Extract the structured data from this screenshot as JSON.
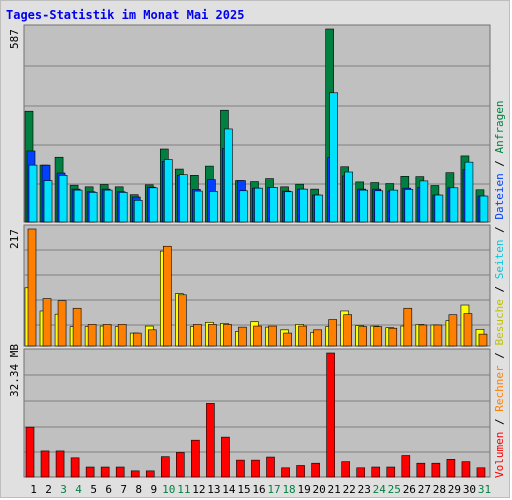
{
  "page": {
    "title": "Tages-Statistik im Monat Mai 2025"
  },
  "colors": {
    "plot_bg": "#c0c0c0",
    "grid": "#808080",
    "anfragen": "#008040",
    "dateien": "#0040ff",
    "seiten": "#00e0ff",
    "besuche": "#ffff00",
    "rechner": "#ff8000",
    "volumen": "#ff0000",
    "weekend_label": "#008040",
    "weekday_label": "#000000"
  },
  "chart_data": [
    {
      "type": "bar",
      "title": "Tages-Statistik im Monat Mai 2025",
      "max_label": "587",
      "ylim": [
        0,
        587
      ],
      "categories": [
        "1",
        "2",
        "3",
        "4",
        "5",
        "6",
        "7",
        "8",
        "9",
        "10",
        "11",
        "12",
        "13",
        "14",
        "15",
        "16",
        "17",
        "18",
        "19",
        "20",
        "21",
        "22",
        "23",
        "24",
        "25",
        "26",
        "27",
        "28",
        "29",
        "30",
        "31"
      ],
      "weekend_days": [
        "3",
        "4",
        "10",
        "11",
        "17",
        "18",
        "24",
        "25",
        "31"
      ],
      "series": [
        {
          "name": "Anfragen",
          "values": [
            337,
            173,
            197,
            112,
            107,
            114,
            107,
            83,
            113,
            222,
            161,
            142,
            170,
            340,
            126,
            123,
            132,
            107,
            115,
            100,
            587,
            168,
            122,
            120,
            117,
            139,
            138,
            111,
            150,
            201,
            98
          ]
        },
        {
          "name": "Dateien",
          "values": [
            216,
            173,
            149,
            100,
            92,
            100,
            92,
            76,
            106,
            184,
            142,
            99,
            129,
            224,
            126,
            103,
            105,
            94,
            100,
            82,
            196,
            140,
            100,
            100,
            94,
            103,
            105,
            82,
            104,
            159,
            79
          ]
        },
        {
          "name": "Seiten",
          "values": [
            173,
            126,
            142,
            97,
            90,
            97,
            90,
            66,
            104,
            190,
            144,
            94,
            93,
            283,
            95,
            103,
            105,
            92,
            100,
            82,
            393,
            152,
            97,
            95,
            97,
            99,
            125,
            82,
            104,
            182,
            79
          ]
        }
      ]
    },
    {
      "type": "bar",
      "max_label": "217",
      "ylim": [
        0,
        217
      ],
      "series": [
        {
          "name": "Besuche",
          "values": [
            108,
            65,
            59,
            36,
            36,
            37,
            36,
            24,
            37,
            176,
            97,
            36,
            44,
            42,
            27,
            45,
            35,
            30,
            40,
            25,
            36,
            65,
            38,
            37,
            34,
            37,
            40,
            39,
            47,
            76,
            31
          ]
        },
        {
          "name": "Rechner",
          "values": [
            217,
            88,
            84,
            70,
            40,
            40,
            40,
            24,
            30,
            185,
            95,
            40,
            40,
            40,
            35,
            37,
            37,
            24,
            37,
            30,
            49,
            58,
            36,
            36,
            33,
            70,
            39,
            39,
            58,
            60,
            22
          ]
        }
      ]
    },
    {
      "type": "bar",
      "max_label": "32.34 MB",
      "ylim": [
        0,
        32.34
      ],
      "series": [
        {
          "name": "Volumen",
          "values": [
            13.0,
            6.8,
            6.8,
            5.0,
            2.6,
            2.6,
            2.6,
            1.6,
            1.6,
            5.3,
            6.4,
            9.6,
            19.2,
            10.4,
            4.4,
            4.4,
            5.2,
            2.4,
            3.0,
            3.6,
            32.34,
            4.0,
            2.4,
            2.6,
            2.6,
            5.6,
            3.6,
            3.6,
            4.6,
            4.0,
            2.4
          ]
        }
      ]
    }
  ],
  "legend_right": [
    {
      "label": "Volumen",
      "color": "#ff0000"
    },
    {
      "label": "Rechner",
      "color": "#ff8000"
    },
    {
      "label": "Besuche",
      "color": "#c0c000"
    },
    {
      "label": "Seiten",
      "color": "#00c8e0"
    },
    {
      "label": "Dateien",
      "color": "#0040ff"
    },
    {
      "label": "Anfragen",
      "color": "#008040"
    }
  ],
  "legend_separator": "/"
}
